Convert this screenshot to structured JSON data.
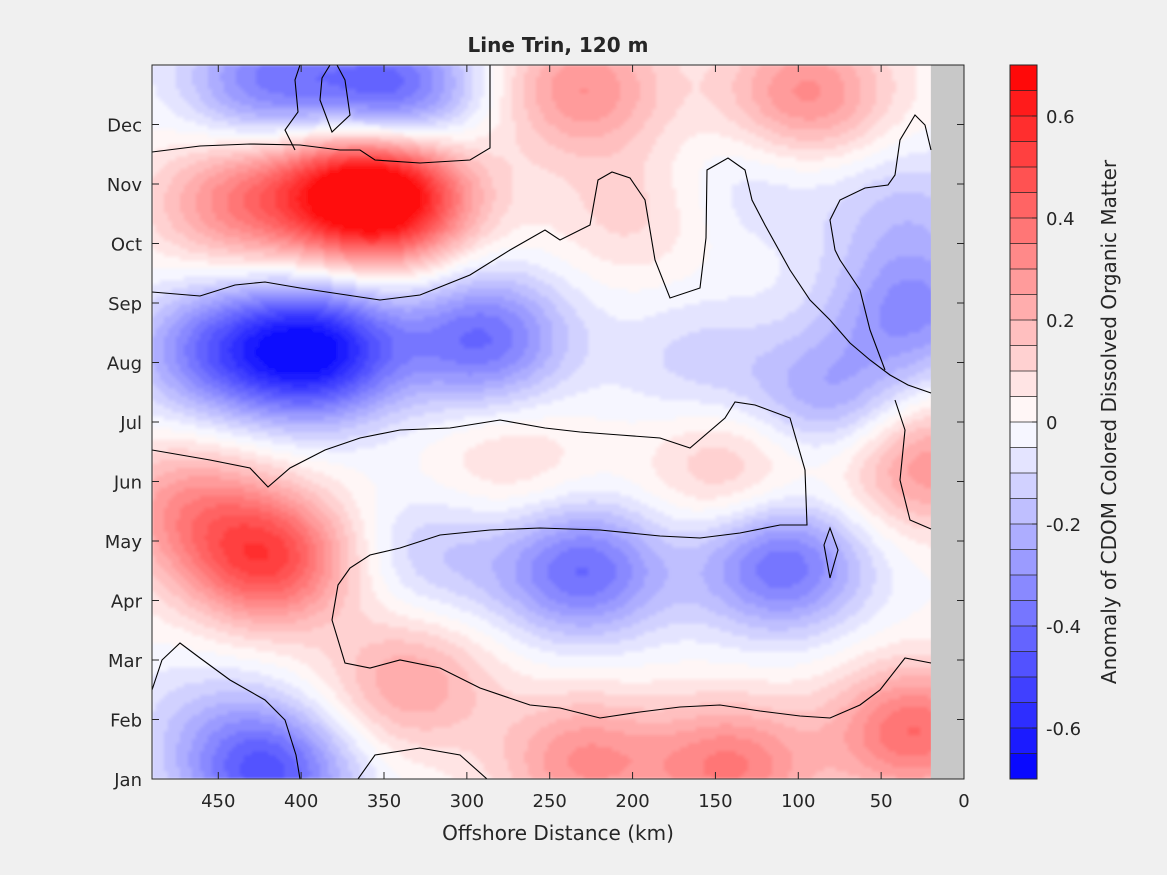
{
  "chart_data": {
    "type": "heatmap",
    "title": "Line Trin, 120 m",
    "xlabel": "Offshore Distance (km)",
    "ylabel": "",
    "xlim": [
      490,
      0
    ],
    "x_reversed": true,
    "x_ticks": [
      450,
      400,
      350,
      300,
      250,
      200,
      150,
      100,
      50,
      0
    ],
    "y_ticks": [
      "Jan",
      "Feb",
      "Mar",
      "Apr",
      "May",
      "Jun",
      "Jul",
      "Aug",
      "Sep",
      "Oct",
      "Nov",
      "Dec"
    ],
    "colorbar": {
      "label": "Anomaly of CDOM Colored Dissolved Organic Matter",
      "range": [
        -0.7,
        0.7
      ],
      "levels": 28,
      "ticks": [
        0.6,
        0.4,
        0.2,
        0,
        -0.2,
        -0.4,
        -0.6
      ],
      "colors": {
        "negative": "#0000ff",
        "zero": "#ffffff",
        "positive": "#ff0000"
      }
    },
    "no_data_region": {
      "x_from": 20,
      "x_to": 0,
      "color": "#c8c8c8"
    },
    "features": [
      {
        "x": 470,
        "month": 4.6,
        "value": 0.25
      },
      {
        "x": 420,
        "month": 3.7,
        "value": 0.5
      },
      {
        "x": 440,
        "month": 9.7,
        "value": 0.3
      },
      {
        "x": 345,
        "month": 9.8,
        "value": 0.58
      },
      {
        "x": 375,
        "month": 9.9,
        "value": 0.4
      },
      {
        "x": 230,
        "month": 11.6,
        "value": 0.3
      },
      {
        "x": 95,
        "month": 11.5,
        "value": 0.32
      },
      {
        "x": 420,
        "month": 11.7,
        "value": -0.35
      },
      {
        "x": 345,
        "month": 11.5,
        "value": -0.45
      },
      {
        "x": 390,
        "month": 7.2,
        "value": -0.62
      },
      {
        "x": 450,
        "month": 7.2,
        "value": -0.35
      },
      {
        "x": 290,
        "month": 7.4,
        "value": -0.4
      },
      {
        "x": 160,
        "month": 7.0,
        "value": -0.12
      },
      {
        "x": 80,
        "month": 6.4,
        "value": -0.25
      },
      {
        "x": 230,
        "month": 3.5,
        "value": -0.4
      },
      {
        "x": 110,
        "month": 3.6,
        "value": -0.4
      },
      {
        "x": 320,
        "month": 3.8,
        "value": -0.15
      },
      {
        "x": 140,
        "month": 5.2,
        "value": 0.18
      },
      {
        "x": 275,
        "month": 5.3,
        "value": 0.12
      },
      {
        "x": 335,
        "month": 1.6,
        "value": 0.25
      },
      {
        "x": 420,
        "month": 0.1,
        "value": -0.45
      },
      {
        "x": 460,
        "month": 1.0,
        "value": -0.1
      },
      {
        "x": 140,
        "month": 0.2,
        "value": 0.35
      },
      {
        "x": 230,
        "month": 0.3,
        "value": 0.3
      },
      {
        "x": 30,
        "month": 0.8,
        "value": 0.4
      },
      {
        "x": 25,
        "month": 5.3,
        "value": 0.3
      },
      {
        "x": 30,
        "month": 7.9,
        "value": -0.3
      },
      {
        "x": 35,
        "month": 9.6,
        "value": -0.15
      },
      {
        "x": 130,
        "month": 10.0,
        "value": -0.1
      },
      {
        "x": 200,
        "month": 9.5,
        "value": 0.12
      }
    ]
  }
}
